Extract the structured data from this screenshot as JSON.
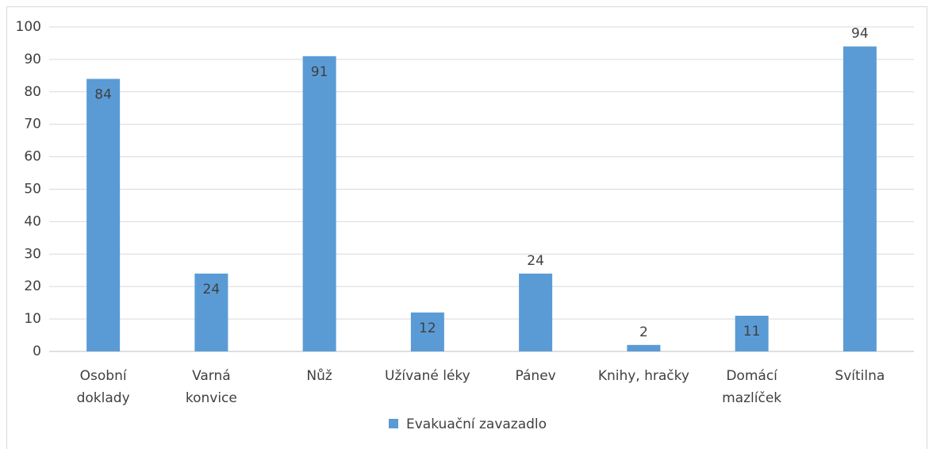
{
  "chart_data": {
    "type": "bar",
    "categories": [
      "Osobní doklady",
      "Varná konvice",
      "Nůž",
      "Užívané léky",
      "Pánev",
      "Knihy, hračky",
      "Domácí mazlíček",
      "Svítilna"
    ],
    "series": [
      {
        "name": "Evakuační zavazadlo",
        "color": "#5b9bd5",
        "values": [
          84,
          24,
          91,
          12,
          24,
          2,
          11,
          94
        ]
      }
    ],
    "ylim": [
      0,
      100
    ],
    "yticks": [
      0,
      10,
      20,
      30,
      40,
      50,
      60,
      70,
      80,
      90,
      100
    ],
    "grid": true,
    "legend": "bottom"
  }
}
